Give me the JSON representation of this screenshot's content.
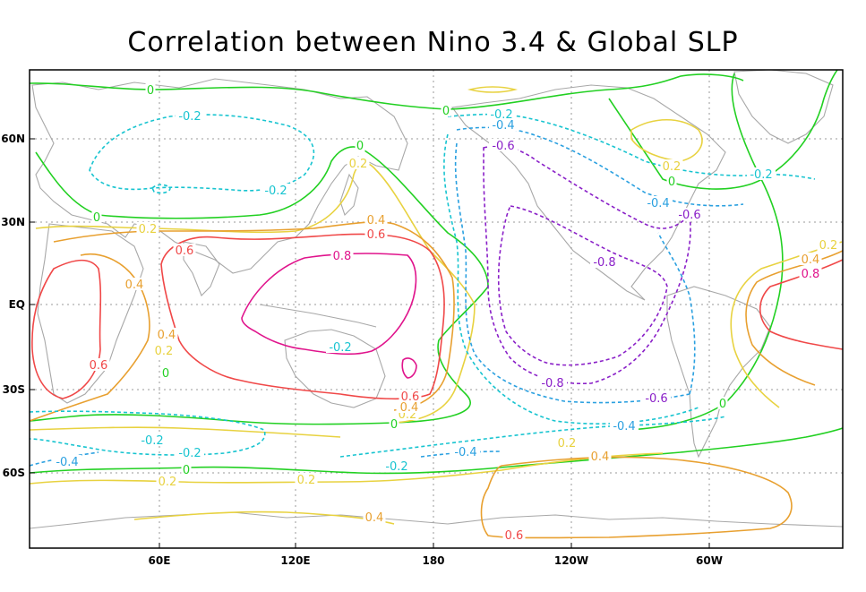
{
  "title": "Correlation between Nino 3.4 & Global SLP",
  "axes": {
    "x_ticks": [
      "60E",
      "120E",
      "180",
      "120W",
      "60W"
    ],
    "y_ticks": [
      "60N",
      "30N",
      "EQ",
      "30S",
      "60S"
    ]
  },
  "colors": {
    "c_0_8": "#e0148c",
    "c_0_6": "#f04848",
    "c_0_4": "#e8a030",
    "c_0_2": "#e8d240",
    "c_0": "#22d022",
    "c_m0_2": "#18c4d0",
    "c_m0_4": "#2aa0e0",
    "c_m0_6": "#8a20c8",
    "c_m0_8": "#8a20c8",
    "land": "#a8a8a8",
    "grid": "#9a9a9a"
  },
  "contour_labels": [
    {
      "text": "0",
      "level": "c_0"
    },
    {
      "text": "0",
      "level": "c_0"
    },
    {
      "text": "0",
      "level": "c_0"
    },
    {
      "text": "0",
      "level": "c_0"
    },
    {
      "text": "0",
      "level": "c_0"
    },
    {
      "text": "0",
      "level": "c_0"
    },
    {
      "text": "0",
      "level": "c_0"
    },
    {
      "text": "0",
      "level": "c_0"
    },
    {
      "text": "0",
      "level": "c_0"
    },
    {
      "text": "0.2",
      "level": "c_0_2"
    },
    {
      "text": "0.2",
      "level": "c_0_2"
    },
    {
      "text": "0.2",
      "level": "c_0_2"
    },
    {
      "text": "0.2",
      "level": "c_0_2"
    },
    {
      "text": "0.2",
      "level": "c_0_2"
    },
    {
      "text": "0.2",
      "level": "c_0_2"
    },
    {
      "text": "0.2",
      "level": "c_0_2"
    },
    {
      "text": "0.2",
      "level": "c_0_2"
    },
    {
      "text": "0.2",
      "level": "c_0_2"
    },
    {
      "text": "0.4",
      "level": "c_0_4"
    },
    {
      "text": "0.4",
      "level": "c_0_4"
    },
    {
      "text": "0.4",
      "level": "c_0_4"
    },
    {
      "text": "0.4",
      "level": "c_0_4"
    },
    {
      "text": "0.4",
      "level": "c_0_4"
    },
    {
      "text": "0.4",
      "level": "c_0_4"
    },
    {
      "text": "0.4",
      "level": "c_0_4"
    },
    {
      "text": "0.6",
      "level": "c_0_6"
    },
    {
      "text": "0.6",
      "level": "c_0_6"
    },
    {
      "text": "0.6",
      "level": "c_0_6"
    },
    {
      "text": "0.6",
      "level": "c_0_6"
    },
    {
      "text": "0.6",
      "level": "c_0_6"
    },
    {
      "text": "0.8",
      "level": "c_0_8"
    },
    {
      "text": "0.8",
      "level": "c_0_8"
    },
    {
      "text": "-0.2",
      "level": "c_m0_2"
    },
    {
      "text": "-0.2",
      "level": "c_m0_2"
    },
    {
      "text": "-0.2",
      "level": "c_m0_2"
    },
    {
      "text": "-0.2",
      "level": "c_m0_2"
    },
    {
      "text": "-0.2",
      "level": "c_m0_2"
    },
    {
      "text": "-0.2",
      "level": "c_m0_2"
    },
    {
      "text": "-0.2",
      "level": "c_m0_2"
    },
    {
      "text": "-0.2",
      "level": "c_m0_2"
    },
    {
      "text": "-0.4",
      "level": "c_m0_4"
    },
    {
      "text": "-0.4",
      "level": "c_m0_4"
    },
    {
      "text": "-0.4",
      "level": "c_m0_4"
    },
    {
      "text": "-0.4",
      "level": "c_m0_4"
    },
    {
      "text": "-0.4",
      "level": "c_m0_4"
    },
    {
      "text": "-0.6",
      "level": "c_m0_6"
    },
    {
      "text": "-0.6",
      "level": "c_m0_6"
    },
    {
      "text": "-0.6",
      "level": "c_m0_6"
    },
    {
      "text": "-0.8",
      "level": "c_m0_8"
    },
    {
      "text": "-0.8",
      "level": "c_m0_8"
    }
  ]
}
